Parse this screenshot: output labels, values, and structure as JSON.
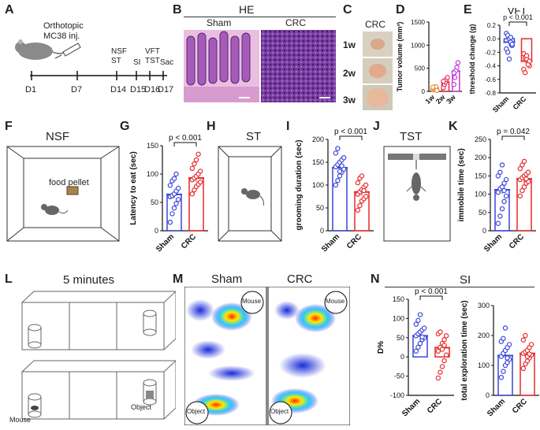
{
  "panels": {
    "A": {
      "label": "A",
      "title": "Orthotopic\nMC38 inj.",
      "days": [
        "D1",
        "D7",
        "D14",
        "D15",
        "D16",
        "D17"
      ],
      "tests": [
        {
          "name": "NSF\nST",
          "day": "D14"
        },
        {
          "name": "SI",
          "day": "D15"
        },
        {
          "name": "VFT\nTST",
          "day": "D16"
        },
        {
          "name": "Sac",
          "day": "D17"
        }
      ]
    },
    "B": {
      "label": "B",
      "title": "HE",
      "cols": [
        "Sham",
        "CRC"
      ]
    },
    "C": {
      "label": "C",
      "title": "CRC",
      "rows": [
        "1w",
        "2w",
        "3w"
      ]
    },
    "D": {
      "label": "D"
    },
    "E": {
      "label": "E",
      "title": "VFT"
    },
    "F": {
      "label": "F",
      "title": "NSF",
      "pellet": "food pellet"
    },
    "G": {
      "label": "G"
    },
    "H": {
      "label": "H",
      "title": "ST"
    },
    "I": {
      "label": "I"
    },
    "J": {
      "label": "J",
      "title": "TST"
    },
    "K": {
      "label": "K"
    },
    "L": {
      "label": "L",
      "title": "5 minutes",
      "mouse": "Mouse",
      "object": "Object"
    },
    "M": {
      "label": "M",
      "cols": [
        "Sham",
        "CRC"
      ],
      "mouse": "Mouse",
      "object": "Object"
    },
    "N": {
      "label": "N",
      "title": "SI"
    }
  },
  "colors": {
    "sham": "#3a46d8",
    "crc": "#e8292a",
    "w1": "#f08a2c",
    "w2": "#e8294f",
    "w3": "#c23ad6"
  },
  "chart_data": [
    {
      "id": "D",
      "type": "bar",
      "ylabel": "Tumor volume (mm³)",
      "ylim": [
        0,
        1500
      ],
      "yticks": [
        0,
        500,
        1000,
        1500
      ],
      "categories": [
        "1w",
        "2w",
        "3w"
      ],
      "means": [
        70,
        200,
        440
      ],
      "points": [
        [
          40,
          60,
          80,
          100,
          20,
          90
        ],
        [
          80,
          150,
          200,
          260,
          300,
          220
        ],
        [
          150,
          300,
          450,
          520,
          620,
          400
        ]
      ]
    },
    {
      "id": "E",
      "type": "bar",
      "ylabel": "threshold change (g)",
      "ylim": [
        -0.8,
        0.2
      ],
      "yticks": [
        0.2,
        0.0,
        -0.2,
        -0.4,
        -0.6,
        -0.8
      ],
      "categories": [
        "Sham",
        "CRC"
      ],
      "means": [
        -0.05,
        -0.33
      ],
      "annotation": "p < 0.001",
      "points": [
        [
          0.08,
          0.05,
          0.0,
          -0.05,
          -0.1,
          -0.15,
          -0.2,
          -0.3,
          0.02,
          -0.08
        ],
        [
          -0.22,
          -0.28,
          -0.3,
          -0.35,
          -0.4,
          -0.45,
          -0.5,
          -0.25,
          -0.38,
          -0.33
        ]
      ]
    },
    {
      "id": "G",
      "type": "bar",
      "ylabel": "Latency to eat (sec)",
      "ylim": [
        0,
        150
      ],
      "yticks": [
        0,
        50,
        100,
        150
      ],
      "categories": [
        "Sham",
        "CRC"
      ],
      "means": [
        64,
        93
      ],
      "annotation": "p < 0.001",
      "points": [
        [
          15,
          30,
          40,
          48,
          55,
          60,
          62,
          65,
          70,
          75,
          80,
          88,
          92,
          100
        ],
        [
          65,
          72,
          78,
          82,
          86,
          90,
          93,
          96,
          100,
          105,
          110,
          118,
          125,
          135
        ]
      ]
    },
    {
      "id": "I",
      "type": "bar",
      "ylabel": "grooming duration (sec)",
      "ylim": [
        0,
        200
      ],
      "yticks": [
        0,
        50,
        100,
        150,
        200
      ],
      "categories": [
        "Sham",
        "CRC"
      ],
      "means": [
        138,
        85
      ],
      "annotation": "p < 0.001",
      "points": [
        [
          100,
          110,
          120,
          128,
          135,
          140,
          145,
          150,
          155,
          160,
          170,
          180,
          130,
          142
        ],
        [
          45,
          55,
          65,
          70,
          75,
          80,
          85,
          90,
          95,
          100,
          105,
          115,
          120,
          88
        ]
      ]
    },
    {
      "id": "K",
      "type": "bar",
      "ylabel": "immobile time (sec)",
      "ylim": [
        0,
        250
      ],
      "yticks": [
        0,
        50,
        100,
        150,
        200,
        250
      ],
      "categories": [
        "Sham",
        "CRC"
      ],
      "means": [
        112,
        142
      ],
      "annotation": "p = 0.042",
      "points": [
        [
          20,
          40,
          60,
          80,
          95,
          105,
          115,
          120,
          130,
          140,
          150,
          160,
          180,
          110
        ],
        [
          95,
          110,
          120,
          130,
          135,
          140,
          145,
          150,
          155,
          160,
          170,
          180,
          190,
          142
        ]
      ]
    },
    {
      "id": "N1",
      "type": "bar",
      "ylabel": "D%",
      "ylim": [
        -100,
        150
      ],
      "yticks": [
        -100,
        -50,
        0,
        50,
        100,
        150
      ],
      "categories": [
        "Sham",
        "CRC"
      ],
      "means": [
        55,
        24
      ],
      "annotation": "p < 0.001",
      "points": [
        [
          15,
          25,
          35,
          45,
          50,
          55,
          60,
          65,
          70,
          75,
          85,
          95,
          110,
          52
        ],
        [
          -55,
          -40,
          -25,
          -10,
          5,
          15,
          25,
          35,
          45,
          55,
          60,
          65,
          20,
          30
        ]
      ]
    },
    {
      "id": "N2",
      "type": "bar",
      "ylabel": "total exploration time (sec)",
      "ylim": [
        0,
        300
      ],
      "yticks": [
        0,
        100,
        200,
        300
      ],
      "categories": [
        "Sham",
        "CRC"
      ],
      "means": [
        133,
        140
      ],
      "points": [
        [
          60,
          80,
          100,
          110,
          120,
          130,
          140,
          150,
          160,
          170,
          180,
          190,
          225,
          125
        ],
        [
          90,
          105,
          115,
          125,
          135,
          140,
          145,
          150,
          160,
          170,
          185,
          200,
          130,
          138
        ]
      ]
    }
  ]
}
